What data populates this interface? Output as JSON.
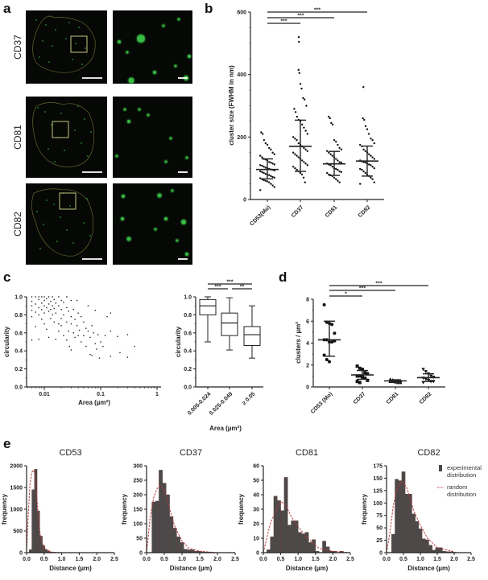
{
  "panel_labels": {
    "a": "a",
    "b": "b",
    "c": "c",
    "d": "d",
    "e": "e"
  },
  "panel_a": {
    "rows": [
      "CD37",
      "CD81",
      "CD82"
    ],
    "colors": {
      "background": "#050805",
      "outline": "#5a5a2a",
      "roi": "#c8c880",
      "cluster": "#3fd24a",
      "scalebar": "#ffffff"
    }
  },
  "chart_data": [
    {
      "panel": "b",
      "type": "scatter",
      "categories": [
        "CD53(Mo)",
        "CD37",
        "CD81",
        "CD82"
      ],
      "xlabel": "",
      "ylabel": "cluster size (FWHM in nm)",
      "ylim": [
        0,
        600
      ],
      "yticks": [
        "0",
        "200",
        "400",
        "600"
      ],
      "grid": false,
      "series": [
        {
          "values": [
            215,
            210,
            190,
            180,
            175,
            165,
            160,
            150,
            145,
            140,
            135,
            130,
            128,
            125,
            120,
            118,
            115,
            112,
            110,
            108,
            105,
            102,
            100,
            98,
            96,
            95,
            93,
            90,
            88,
            85,
            82,
            80,
            78,
            75,
            72,
            70,
            68,
            65,
            62,
            60,
            58,
            55,
            50,
            45,
            40,
            30
          ],
          "mean": 96,
          "sd_range": [
            66,
            130
          ]
        },
        {
          "values": [
            520,
            505,
            415,
            405,
            370,
            355,
            325,
            320,
            300,
            290,
            280,
            265,
            255,
            250,
            240,
            230,
            220,
            210,
            200,
            195,
            190,
            180,
            175,
            170,
            165,
            160,
            155,
            150,
            145,
            140,
            135,
            130,
            125,
            120,
            115,
            110,
            105,
            100,
            95,
            90,
            85,
            80,
            70,
            55
          ],
          "mean": 170,
          "sd_range": [
            90,
            254
          ]
        },
        {
          "values": [
            265,
            260,
            245,
            240,
            190,
            185,
            175,
            165,
            160,
            155,
            150,
            145,
            140,
            135,
            130,
            125,
            120,
            118,
            115,
            112,
            110,
            105,
            100,
            98,
            95,
            90,
            88,
            85,
            80,
            78,
            75,
            70,
            65,
            60,
            55
          ],
          "mean": 114,
          "sd_range": [
            77,
            154
          ]
        },
        {
          "values": [
            360,
            260,
            255,
            235,
            225,
            210,
            195,
            190,
            180,
            175,
            170,
            160,
            155,
            150,
            145,
            140,
            135,
            130,
            125,
            122,
            120,
            118,
            115,
            112,
            110,
            105,
            100,
            98,
            95,
            90,
            85,
            80,
            75,
            70,
            65,
            55,
            50
          ],
          "mean": 123,
          "sd_range": [
            75,
            171
          ]
        }
      ],
      "significance": [
        {
          "from": 0,
          "to": 3,
          "label": "***"
        },
        {
          "from": 0,
          "to": 2,
          "label": "***"
        },
        {
          "from": 0,
          "to": 1,
          "label": "***"
        }
      ]
    },
    {
      "panel": "c-left",
      "type": "scatter",
      "xlabel": "Area (µm²)",
      "ylabel": "circularity",
      "xscale": "log",
      "xlim": [
        0.005,
        1
      ],
      "ylim": [
        0,
        1
      ],
      "xticks": [
        "0.01",
        "0.1",
        "1"
      ],
      "yticks": [
        "0.0",
        "0.2",
        "0.4",
        "0.6",
        "0.8",
        "1.0"
      ],
      "grid": false,
      "points": [
        [
          0.006,
          1.0
        ],
        [
          0.006,
          0.95
        ],
        [
          0.006,
          0.9
        ],
        [
          0.006,
          0.85
        ],
        [
          0.006,
          0.78
        ],
        [
          0.006,
          0.52
        ],
        [
          0.007,
          1.0
        ],
        [
          0.007,
          0.92
        ],
        [
          0.007,
          0.83
        ],
        [
          0.007,
          0.67
        ],
        [
          0.008,
          1.0
        ],
        [
          0.008,
          0.97
        ],
        [
          0.008,
          0.88
        ],
        [
          0.008,
          0.8
        ],
        [
          0.008,
          0.53
        ],
        [
          0.009,
          1.0
        ],
        [
          0.009,
          0.93
        ],
        [
          0.009,
          0.86
        ],
        [
          0.009,
          0.75
        ],
        [
          0.01,
          1.0
        ],
        [
          0.01,
          0.96
        ],
        [
          0.01,
          0.9
        ],
        [
          0.01,
          0.82
        ],
        [
          0.01,
          0.7
        ],
        [
          0.011,
          0.98
        ],
        [
          0.011,
          0.88
        ],
        [
          0.011,
          0.64
        ],
        [
          0.012,
          1.0
        ],
        [
          0.012,
          0.92
        ],
        [
          0.012,
          0.84
        ],
        [
          0.012,
          0.55
        ],
        [
          0.013,
          0.95
        ],
        [
          0.013,
          0.86
        ],
        [
          0.013,
          0.76
        ],
        [
          0.014,
          1.0
        ],
        [
          0.014,
          0.9
        ],
        [
          0.014,
          0.8
        ],
        [
          0.015,
          0.97
        ],
        [
          0.015,
          0.87
        ],
        [
          0.015,
          0.72
        ],
        [
          0.016,
          0.93
        ],
        [
          0.016,
          0.82
        ],
        [
          0.016,
          0.53
        ],
        [
          0.018,
          1.0
        ],
        [
          0.018,
          0.9
        ],
        [
          0.018,
          0.7
        ],
        [
          0.018,
          0.62
        ],
        [
          0.02,
          0.96
        ],
        [
          0.02,
          0.86
        ],
        [
          0.02,
          0.76
        ],
        [
          0.02,
          0.68
        ],
        [
          0.022,
          0.94
        ],
        [
          0.022,
          0.8
        ],
        [
          0.022,
          0.57
        ],
        [
          0.025,
          1.0
        ],
        [
          0.025,
          0.88
        ],
        [
          0.025,
          0.72
        ],
        [
          0.025,
          0.52
        ],
        [
          0.027,
          0.84
        ],
        [
          0.027,
          0.62
        ],
        [
          0.028,
          0.45
        ],
        [
          0.03,
          0.96
        ],
        [
          0.03,
          0.78
        ],
        [
          0.03,
          0.7
        ],
        [
          0.03,
          0.41
        ],
        [
          0.033,
          0.86
        ],
        [
          0.033,
          0.6
        ],
        [
          0.035,
          0.75
        ],
        [
          0.035,
          0.55
        ],
        [
          0.038,
          0.96
        ],
        [
          0.038,
          0.68
        ],
        [
          0.04,
          0.82
        ],
        [
          0.04,
          0.57
        ],
        [
          0.042,
          0.63
        ],
        [
          0.045,
          0.78
        ],
        [
          0.045,
          0.5
        ],
        [
          0.05,
          0.72
        ],
        [
          0.05,
          0.57
        ],
        [
          0.055,
          0.65
        ],
        [
          0.055,
          0.45
        ],
        [
          0.06,
          0.9
        ],
        [
          0.06,
          0.62
        ],
        [
          0.065,
          0.55
        ],
        [
          0.065,
          0.36
        ],
        [
          0.07,
          0.68
        ],
        [
          0.07,
          0.35
        ],
        [
          0.075,
          0.6
        ],
        [
          0.08,
          0.85
        ],
        [
          0.08,
          0.48
        ],
        [
          0.085,
          0.42
        ],
        [
          0.09,
          0.58
        ],
        [
          0.095,
          0.32
        ],
        [
          0.1,
          0.5
        ],
        [
          0.11,
          0.45
        ],
        [
          0.12,
          0.57
        ],
        [
          0.13,
          0.78
        ],
        [
          0.15,
          0.82
        ],
        [
          0.15,
          0.34
        ],
        [
          0.15,
          0.62
        ],
        [
          0.2,
          0.56
        ],
        [
          0.22,
          0.38
        ],
        [
          0.3,
          0.58
        ],
        [
          0.3,
          0.33
        ],
        [
          0.4,
          0.45
        ]
      ]
    },
    {
      "panel": "c-right",
      "type": "box",
      "categories": [
        "0.005-0.024",
        "0.025-0.049",
        "≥ 0.05"
      ],
      "xlabel": "Area (µm²)",
      "ylabel": "circularity",
      "ylim": [
        0,
        1
      ],
      "yticks": [
        "0.0",
        "0.2",
        "0.4",
        "0.6",
        "0.8",
        "1.0"
      ],
      "boxes": [
        {
          "min": 0.5,
          "q1": 0.8,
          "median": 0.9,
          "q3": 0.97,
          "max": 1.0
        },
        {
          "min": 0.41,
          "q1": 0.57,
          "median": 0.71,
          "q3": 0.82,
          "max": 0.99
        },
        {
          "min": 0.32,
          "q1": 0.46,
          "median": 0.58,
          "q3": 0.67,
          "max": 0.9
        }
      ],
      "significance": [
        {
          "from": 0,
          "to": 2,
          "label": "***"
        },
        {
          "from": 0,
          "to": 1,
          "label": "***"
        },
        {
          "from": 1,
          "to": 2,
          "label": "**"
        }
      ]
    },
    {
      "panel": "d",
      "type": "scatter",
      "categories": [
        "CD53 (Mo)",
        "CD37",
        "CD81",
        "CD82"
      ],
      "ylabel": "clusters / µm²",
      "ylim": [
        0,
        8
      ],
      "yticks": [
        "0",
        "2",
        "4",
        "6",
        "8"
      ],
      "markers": [
        "circle",
        "square",
        "triangle-up",
        "triangle-down"
      ],
      "series": [
        {
          "values": [
            7.5,
            5.9,
            5.8,
            5.7,
            4.9,
            4.3,
            4.3,
            4.1,
            4.1,
            4.2,
            2.9,
            2.5,
            2.3
          ],
          "mean": 4.3,
          "sd_range": [
            2.8,
            6.0
          ]
        },
        {
          "values": [
            1.9,
            1.7,
            1.6,
            1.3,
            1.2,
            1.0,
            1.0,
            0.9,
            0.8,
            0.6,
            0.5,
            0.4
          ],
          "mean": 1.1,
          "sd_range": [
            0.7,
            1.5
          ]
        },
        {
          "values": [
            0.7,
            0.65,
            0.6,
            0.6,
            0.55,
            0.5,
            0.5,
            0.45,
            0.4,
            0.4
          ],
          "mean": 0.55,
          "sd_range": [
            0.45,
            0.65
          ]
        },
        {
          "values": [
            1.6,
            1.4,
            1.2,
            1.0,
            0.9,
            0.8,
            0.7,
            0.6,
            0.5,
            0.5,
            0.4
          ],
          "mean": 0.85,
          "sd_range": [
            0.5,
            1.2
          ]
        }
      ],
      "significance": [
        {
          "from": 0,
          "to": 3,
          "label": "***"
        },
        {
          "from": 0,
          "to": 2,
          "label": "***"
        },
        {
          "from": 0,
          "to": 1,
          "label": "*"
        }
      ]
    },
    {
      "panel": "e1",
      "type": "bar",
      "title": "CD53",
      "xlabel": "Distance (µm)",
      "ylabel": "frequency",
      "xlim": [
        0,
        2.5
      ],
      "ylim": [
        0,
        2000
      ],
      "xticks": [
        "0.0",
        "0.5",
        "1.0",
        "1.5",
        "2.0",
        "2.5"
      ],
      "yticks": [
        "0",
        "500",
        "1000",
        "1500",
        "2000"
      ],
      "bin_start": 0.075,
      "bin_width": 0.075,
      "values": [
        70,
        1450,
        1920,
        960,
        380,
        160,
        70,
        30,
        15,
        8,
        5,
        3,
        2
      ],
      "random_curve": [
        [
          0,
          0
        ],
        [
          0.05,
          900
        ],
        [
          0.1,
          1600
        ],
        [
          0.15,
          1850
        ],
        [
          0.2,
          1900
        ],
        [
          0.25,
          1750
        ],
        [
          0.3,
          1200
        ],
        [
          0.35,
          700
        ],
        [
          0.4,
          350
        ],
        [
          0.5,
          100
        ],
        [
          0.7,
          15
        ],
        [
          1.0,
          0
        ],
        [
          2.5,
          0
        ]
      ]
    },
    {
      "panel": "e2",
      "type": "bar",
      "title": "CD37",
      "xlabel": "Distance (µm)",
      "ylabel": "frequency",
      "xlim": [
        0,
        2.5
      ],
      "ylim": [
        0,
        300
      ],
      "xticks": [
        "0.0",
        "0.5",
        "1.0",
        "1.5",
        "2.0",
        "2.5"
      ],
      "yticks": [
        "0",
        "50",
        "100",
        "150",
        "200",
        "250",
        "300"
      ],
      "bin_start": 0.15,
      "bin_width": 0.1,
      "values": [
        175,
        178,
        285,
        240,
        200,
        125,
        85,
        55,
        35,
        12,
        10,
        10,
        5,
        5,
        3,
        2,
        2,
        1
      ],
      "random_curve": [
        [
          0,
          0
        ],
        [
          0.1,
          120
        ],
        [
          0.2,
          190
        ],
        [
          0.3,
          222
        ],
        [
          0.4,
          232
        ],
        [
          0.5,
          215
        ],
        [
          0.6,
          175
        ],
        [
          0.7,
          130
        ],
        [
          0.8,
          90
        ],
        [
          1.0,
          40
        ],
        [
          1.2,
          15
        ],
        [
          1.5,
          5
        ],
        [
          2.0,
          0
        ]
      ]
    },
    {
      "panel": "e3",
      "type": "bar",
      "title": "CD81",
      "xlabel": "Distance (µm)",
      "ylabel": "frequency",
      "xlim": [
        0,
        2.5
      ],
      "ylim": [
        0,
        60
      ],
      "xticks": [
        "0.0",
        "0.5",
        "1.0",
        "1.5",
        "2.0",
        "2.5"
      ],
      "yticks": [
        "0",
        "10",
        "20",
        "30",
        "40",
        "50",
        "60"
      ],
      "bin_start": 0.1,
      "bin_width": 0.1,
      "values": [
        2,
        11,
        39,
        36,
        29,
        52,
        19,
        22,
        22,
        14,
        13,
        14,
        7,
        9,
        1,
        0,
        8,
        4,
        1,
        1,
        0,
        1
      ],
      "random_curve": [
        [
          0,
          0
        ],
        [
          0.2,
          20
        ],
        [
          0.4,
          31
        ],
        [
          0.5,
          35
        ],
        [
          0.6,
          34
        ],
        [
          0.7,
          30
        ],
        [
          0.8,
          25
        ],
        [
          1.0,
          18
        ],
        [
          1.2,
          12
        ],
        [
          1.4,
          7
        ],
        [
          1.6,
          3
        ],
        [
          2.0,
          1
        ],
        [
          2.5,
          0
        ]
      ]
    },
    {
      "panel": "e4",
      "type": "bar",
      "title": "CD82",
      "xlabel": "Distance (µm)",
      "ylabel": "frequency",
      "xlim": [
        0,
        2.5
      ],
      "ylim": [
        0,
        175
      ],
      "xticks": [
        "0.0",
        "0.5",
        "1.0",
        "1.5",
        "2.0",
        "2.5"
      ],
      "yticks": [
        "0",
        "25",
        "50",
        "75",
        "100",
        "125",
        "150",
        "175"
      ],
      "bin_start": 0.15,
      "bin_width": 0.1,
      "values": [
        37,
        148,
        145,
        163,
        118,
        118,
        78,
        63,
        48,
        28,
        26,
        15,
        5,
        10,
        10,
        3,
        2,
        2,
        1
      ],
      "random_curve": [
        [
          0,
          0
        ],
        [
          0.1,
          40
        ],
        [
          0.2,
          95
        ],
        [
          0.3,
          125
        ],
        [
          0.4,
          140
        ],
        [
          0.5,
          142
        ],
        [
          0.6,
          130
        ],
        [
          0.7,
          110
        ],
        [
          0.8,
          85
        ],
        [
          1.0,
          55
        ],
        [
          1.2,
          30
        ],
        [
          1.5,
          10
        ],
        [
          2.0,
          2
        ]
      ],
      "legend": {
        "position": "right",
        "entries": [
          [
            "experimental",
            "distribution"
          ],
          [
            "random",
            "distribution"
          ]
        ]
      }
    }
  ],
  "colors": {
    "bar": "#4a4a4a",
    "bar_edge": "#6b3a3a",
    "curve": "#b33a3a",
    "ink": "#222222"
  }
}
